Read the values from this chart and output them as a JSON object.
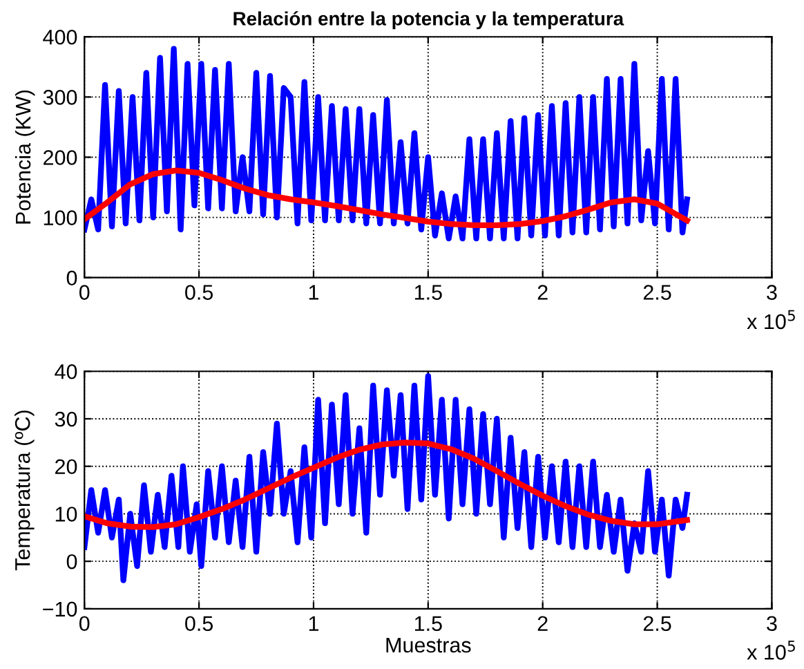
{
  "chart_data": [
    {
      "type": "line",
      "title": "Relación entre la potencia y la temperatura",
      "ylabel": "Potencia (KW)",
      "grid": true,
      "legend": false,
      "xlim": [
        0,
        3
      ],
      "xticks": [
        0,
        0.5,
        1,
        1.5,
        2,
        2.5,
        3
      ],
      "ylim": [
        0,
        400
      ],
      "yticks": [
        0,
        100,
        200,
        300,
        400
      ],
      "annotations": [
        "x 10$^{5}$"
      ],
      "series": [
        {
          "color": "#0000ff",
          "x": [
            0,
            0.03,
            0.06,
            0.09,
            0.12,
            0.15,
            0.18,
            0.21,
            0.24,
            0.27,
            0.3,
            0.33,
            0.36,
            0.39,
            0.42,
            0.45,
            0.48,
            0.51,
            0.54,
            0.57,
            0.6,
            0.63,
            0.66,
            0.69,
            0.72,
            0.75,
            0.78,
            0.81,
            0.84,
            0.87,
            0.9,
            0.93,
            0.96,
            0.99,
            1.02,
            1.05,
            1.08,
            1.11,
            1.14,
            1.17,
            1.2,
            1.23,
            1.26,
            1.29,
            1.32,
            1.35,
            1.38,
            1.41,
            1.44,
            1.47,
            1.5,
            1.53,
            1.56,
            1.59,
            1.62,
            1.65,
            1.68,
            1.71,
            1.74,
            1.77,
            1.8,
            1.83,
            1.86,
            1.89,
            1.92,
            1.95,
            1.98,
            2.01,
            2.04,
            2.07,
            2.1,
            2.13,
            2.16,
            2.19,
            2.22,
            2.25,
            2.28,
            2.31,
            2.34,
            2.37,
            2.4,
            2.43,
            2.46,
            2.49,
            2.52,
            2.55,
            2.58,
            2.61,
            2.63
          ],
          "values": [
            80,
            130,
            80,
            320,
            85,
            310,
            90,
            300,
            95,
            340,
            100,
            365,
            110,
            380,
            80,
            355,
            120,
            355,
            115,
            345,
            115,
            355,
            110,
            200,
            110,
            340,
            105,
            335,
            100,
            315,
            300,
            90,
            325,
            95,
            300,
            95,
            285,
            95,
            280,
            95,
            280,
            90,
            270,
            90,
            295,
            90,
            225,
            90,
            240,
            80,
            200,
            70,
            140,
            65,
            135,
            65,
            230,
            65,
            230,
            65,
            240,
            65,
            260,
            65,
            265,
            70,
            270,
            70,
            285,
            70,
            290,
            75,
            300,
            75,
            300,
            80,
            330,
            85,
            330,
            90,
            355,
            95,
            210,
            90,
            330,
            80,
            330,
            75,
            130
          ]
        },
        {
          "color": "#ff0000",
          "x": [
            0,
            0.1,
            0.2,
            0.3,
            0.4,
            0.5,
            0.6,
            0.7,
            0.8,
            0.9,
            1,
            1.1,
            1.2,
            1.3,
            1.4,
            1.5,
            1.6,
            1.7,
            1.8,
            1.9,
            2,
            2.1,
            2.2,
            2.3,
            2.4,
            2.5,
            2.63
          ],
          "values": [
            97,
            125,
            155,
            172,
            178,
            174,
            162,
            148,
            137,
            130,
            125,
            119,
            112,
            105,
            99,
            93,
            89,
            87,
            87,
            89,
            94,
            102,
            113,
            125,
            130,
            123,
            95
          ]
        }
      ]
    },
    {
      "type": "line",
      "ylabel": "Temperatura (ºC)",
      "xlabel": "Muestras",
      "grid": true,
      "legend": false,
      "xlim": [
        0,
        3
      ],
      "xticks": [
        0,
        0.5,
        1,
        1.5,
        2,
        2.5,
        3
      ],
      "ylim": [
        -10,
        40
      ],
      "yticks": [
        -10,
        0,
        10,
        20,
        30,
        40
      ],
      "annotations": [
        "x 10$^{5}$"
      ],
      "series": [
        {
          "color": "#0000ff",
          "x": [
            0,
            0.03,
            0.06,
            0.09,
            0.12,
            0.15,
            0.17,
            0.2,
            0.23,
            0.26,
            0.29,
            0.32,
            0.35,
            0.38,
            0.41,
            0.43,
            0.46,
            0.49,
            0.51,
            0.54,
            0.57,
            0.6,
            0.63,
            0.66,
            0.69,
            0.72,
            0.75,
            0.78,
            0.81,
            0.84,
            0.87,
            0.9,
            0.93,
            0.96,
            0.99,
            1.02,
            1.05,
            1.08,
            1.11,
            1.14,
            1.17,
            1.2,
            1.23,
            1.26,
            1.29,
            1.32,
            1.35,
            1.38,
            1.41,
            1.44,
            1.47,
            1.5,
            1.53,
            1.56,
            1.59,
            1.62,
            1.65,
            1.68,
            1.71,
            1.74,
            1.77,
            1.8,
            1.83,
            1.86,
            1.89,
            1.92,
            1.95,
            1.98,
            2.01,
            2.04,
            2.07,
            2.1,
            2.13,
            2.16,
            2.19,
            2.22,
            2.25,
            2.28,
            2.31,
            2.34,
            2.37,
            2.4,
            2.43,
            2.46,
            2.49,
            2.52,
            2.55,
            2.58,
            2.61,
            2.63
          ],
          "values": [
            3,
            15,
            6,
            15,
            5,
            13,
            -4,
            10,
            -1,
            16,
            2,
            14,
            3,
            18,
            3,
            20,
            2,
            12,
            -1,
            19,
            5,
            20,
            4,
            17,
            3,
            22,
            2,
            23,
            10,
            29,
            10,
            19,
            4,
            24,
            5,
            34,
            8,
            33,
            12,
            35,
            10,
            28,
            6,
            37,
            14,
            36,
            18,
            35,
            11,
            37,
            13,
            39,
            14,
            34,
            9,
            34,
            12,
            32,
            10,
            31,
            12,
            30,
            5,
            26,
            7,
            23,
            3,
            22,
            5,
            20,
            4,
            21,
            3,
            20,
            3,
            21,
            3,
            14,
            2,
            13,
            -2,
            8,
            2,
            19,
            2,
            13,
            -3,
            13,
            7,
            14
          ]
        },
        {
          "color": "#ff0000",
          "x": [
            0,
            0.1,
            0.2,
            0.3,
            0.4,
            0.5,
            0.6,
            0.7,
            0.8,
            0.9,
            1,
            1.1,
            1.2,
            1.3,
            1.4,
            1.5,
            1.6,
            1.7,
            1.8,
            1.9,
            2,
            2.1,
            2.2,
            2.3,
            2.4,
            2.5,
            2.63
          ],
          "values": [
            9.5,
            8,
            7.3,
            7.2,
            7.8,
            9.3,
            11,
            13,
            15.3,
            17.6,
            19.7,
            21.8,
            23.5,
            24.6,
            25,
            24.8,
            23.6,
            21.6,
            19,
            16.3,
            13.8,
            11.6,
            9.8,
            8.5,
            7.8,
            7.8,
            8.7
          ]
        }
      ]
    }
  ]
}
